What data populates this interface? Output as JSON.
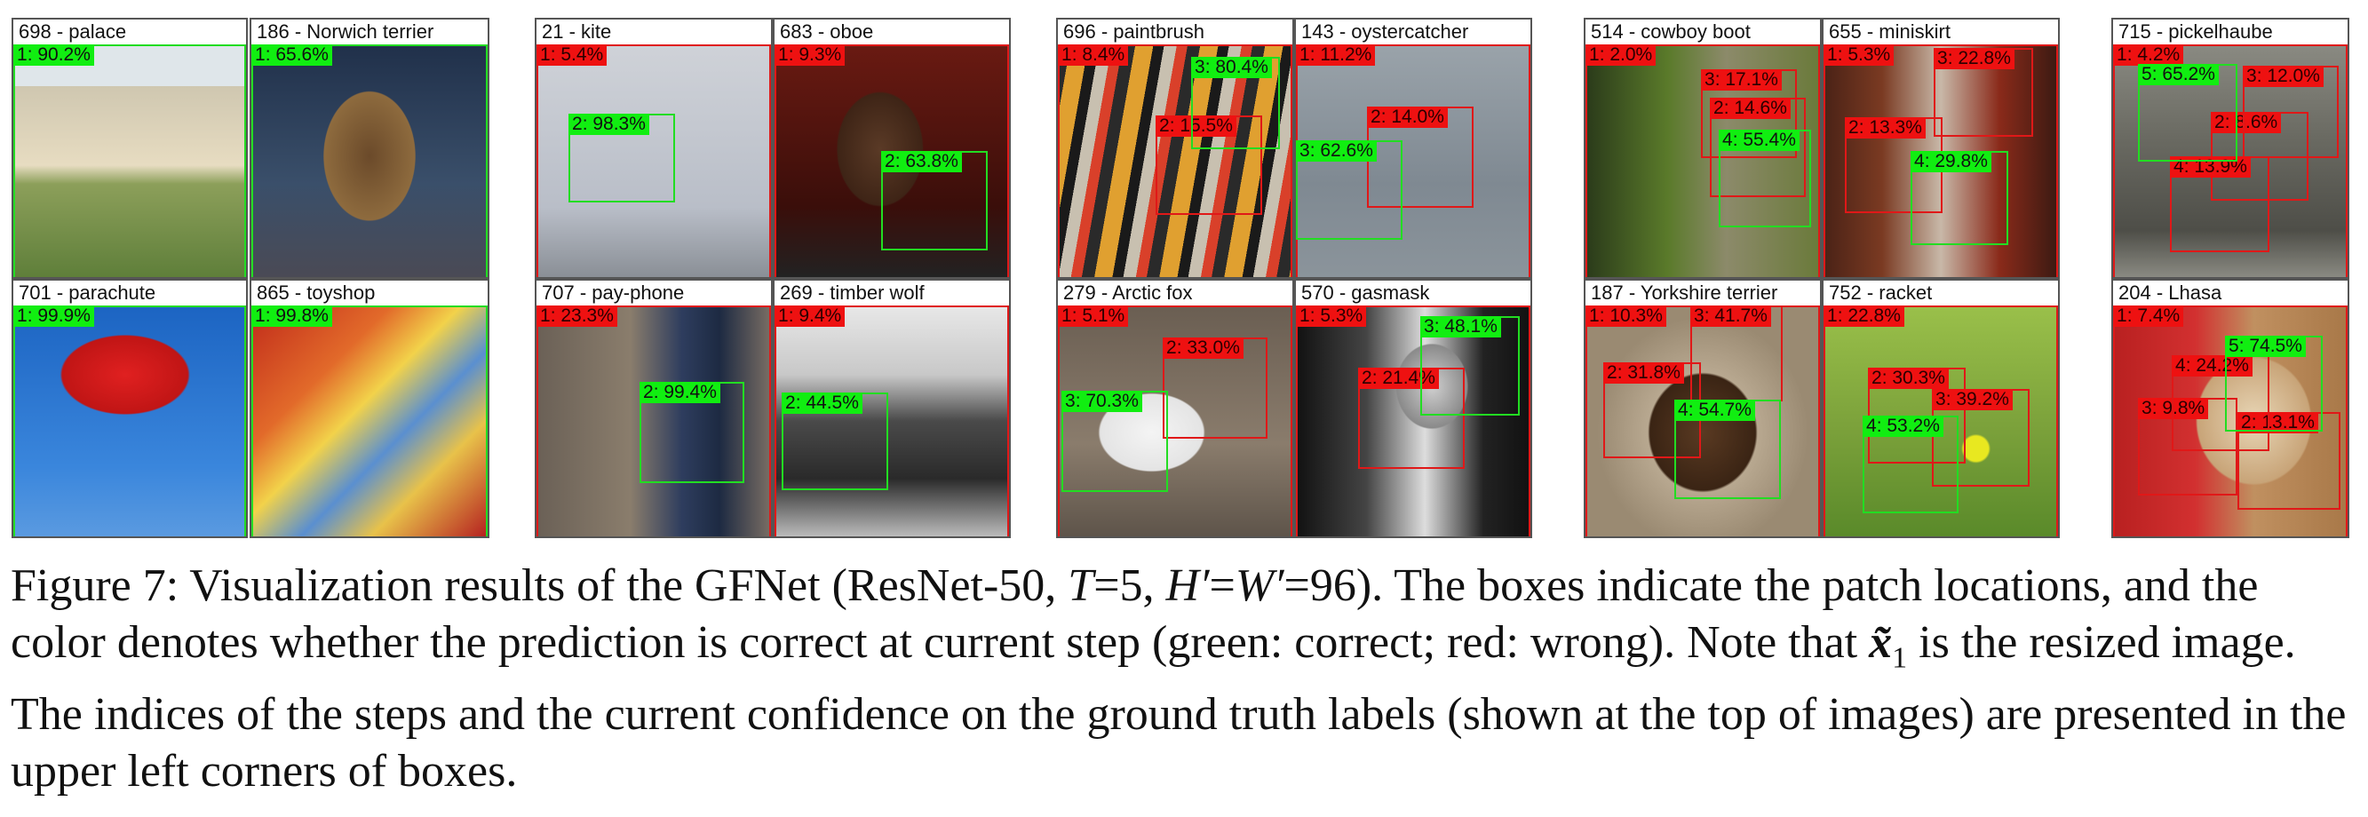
{
  "panels": [
    {
      "id": "698",
      "label": "palace",
      "steps": [
        {
          "step": "1",
          "conf": "90.2%",
          "correct": true
        }
      ]
    },
    {
      "id": "186",
      "label": "Norwich terrier",
      "steps": [
        {
          "step": "1",
          "conf": "65.6%",
          "correct": true
        }
      ]
    },
    {
      "id": "701",
      "label": "parachute",
      "steps": [
        {
          "step": "1",
          "conf": "99.9%",
          "correct": true
        }
      ]
    },
    {
      "id": "865",
      "label": "toyshop",
      "steps": [
        {
          "step": "1",
          "conf": "99.8%",
          "correct": true
        }
      ]
    },
    {
      "id": "21",
      "label": "kite",
      "steps": [
        {
          "step": "1",
          "conf": "5.4%",
          "correct": false
        },
        {
          "step": "2",
          "conf": "98.3%",
          "correct": true
        }
      ]
    },
    {
      "id": "683",
      "label": "oboe",
      "steps": [
        {
          "step": "1",
          "conf": "9.3%",
          "correct": false
        },
        {
          "step": "2",
          "conf": "63.8%",
          "correct": true
        }
      ]
    },
    {
      "id": "707",
      "label": "pay-phone",
      "steps": [
        {
          "step": "1",
          "conf": "23.3%",
          "correct": false
        },
        {
          "step": "2",
          "conf": "99.4%",
          "correct": true
        }
      ]
    },
    {
      "id": "269",
      "label": "timber wolf",
      "steps": [
        {
          "step": "1",
          "conf": "9.4%",
          "correct": false
        },
        {
          "step": "2",
          "conf": "44.5%",
          "correct": true
        }
      ]
    },
    {
      "id": "696",
      "label": "paintbrush",
      "steps": [
        {
          "step": "1",
          "conf": "8.4%",
          "correct": false
        },
        {
          "step": "2",
          "conf": "15.5%",
          "correct": false
        },
        {
          "step": "3",
          "conf": "80.4%",
          "correct": true
        }
      ]
    },
    {
      "id": "143",
      "label": "oystercatcher",
      "steps": [
        {
          "step": "1",
          "conf": "11.2%",
          "correct": false
        },
        {
          "step": "2",
          "conf": "14.0%",
          "correct": false
        },
        {
          "step": "3",
          "conf": "62.6%",
          "correct": true
        }
      ]
    },
    {
      "id": "279",
      "label": "Arctic fox",
      "steps": [
        {
          "step": "1",
          "conf": "5.1%",
          "correct": false
        },
        {
          "step": "2",
          "conf": "33.0%",
          "correct": false
        },
        {
          "step": "3",
          "conf": "70.3%",
          "correct": true
        }
      ]
    },
    {
      "id": "570",
      "label": "gasmask",
      "steps": [
        {
          "step": "1",
          "conf": "5.3%",
          "correct": false
        },
        {
          "step": "2",
          "conf": "21.4%",
          "correct": false
        },
        {
          "step": "3",
          "conf": "48.1%",
          "correct": true
        }
      ]
    },
    {
      "id": "514",
      "label": "cowboy boot",
      "steps": [
        {
          "step": "1",
          "conf": "2.0%",
          "correct": false
        },
        {
          "step": "2",
          "conf": "14.6%",
          "correct": false
        },
        {
          "step": "3",
          "conf": "17.1%",
          "correct": false
        },
        {
          "step": "4",
          "conf": "55.4%",
          "correct": true
        }
      ]
    },
    {
      "id": "655",
      "label": "miniskirt",
      "steps": [
        {
          "step": "1",
          "conf": "5.3%",
          "correct": false
        },
        {
          "step": "2",
          "conf": "13.3%",
          "correct": false
        },
        {
          "step": "3",
          "conf": "22.8%",
          "correct": false
        },
        {
          "step": "4",
          "conf": "29.8%",
          "correct": true
        }
      ]
    },
    {
      "id": "187",
      "label": "Yorkshire terrier",
      "steps": [
        {
          "step": "1",
          "conf": "10.3%",
          "correct": false
        },
        {
          "step": "2",
          "conf": "31.8%",
          "correct": false
        },
        {
          "step": "3",
          "conf": "41.7%",
          "correct": false
        },
        {
          "step": "4",
          "conf": "54.7%",
          "correct": true
        }
      ]
    },
    {
      "id": "752",
      "label": "racket",
      "steps": [
        {
          "step": "1",
          "conf": "22.8%",
          "correct": false
        },
        {
          "step": "2",
          "conf": "30.3%",
          "correct": false
        },
        {
          "step": "3",
          "conf": "39.2%",
          "correct": false
        },
        {
          "step": "4",
          "conf": "53.2%",
          "correct": true
        }
      ]
    },
    {
      "id": "715",
      "label": "pickelhaube",
      "steps": [
        {
          "step": "1",
          "conf": "4.2%",
          "correct": false
        },
        {
          "step": "2",
          "conf": "8.6%",
          "correct": false
        },
        {
          "step": "3",
          "conf": "12.0%",
          "correct": false
        },
        {
          "step": "4",
          "conf": "13.9%",
          "correct": false
        },
        {
          "step": "5",
          "conf": "65.2%",
          "correct": true
        }
      ]
    },
    {
      "id": "204",
      "label": "Lhasa",
      "steps": [
        {
          "step": "1",
          "conf": "7.4%",
          "correct": false
        },
        {
          "step": "2",
          "conf": "13.1%",
          "correct": false
        },
        {
          "step": "3",
          "conf": "9.8%",
          "correct": false
        },
        {
          "step": "4",
          "conf": "24.2%",
          "correct": false
        },
        {
          "step": "5",
          "conf": "74.5%",
          "correct": true
        }
      ]
    }
  ],
  "caption": {
    "prefix": "Figure 7: Visualization results of the GFNet (ResNet-50, ",
    "math_T": "T",
    "eq_T": "=5, ",
    "math_H": "H′",
    "eq_mid": "=",
    "math_W": "W′",
    "eq_W": "=96). The boxes indicate the patch locations, and the color denotes whether the prediction is correct at current step (green: correct; red: wrong). Note that ",
    "math_x": "x̃",
    "math_sub": "1",
    "suffix": " is the resized image. The indices of the steps and the current confidence on the ground truth labels (shown at the top of images) are presented in the upper left corners of boxes."
  },
  "colors": {
    "correct": "#22dd22",
    "wrong": "#e01818"
  }
}
